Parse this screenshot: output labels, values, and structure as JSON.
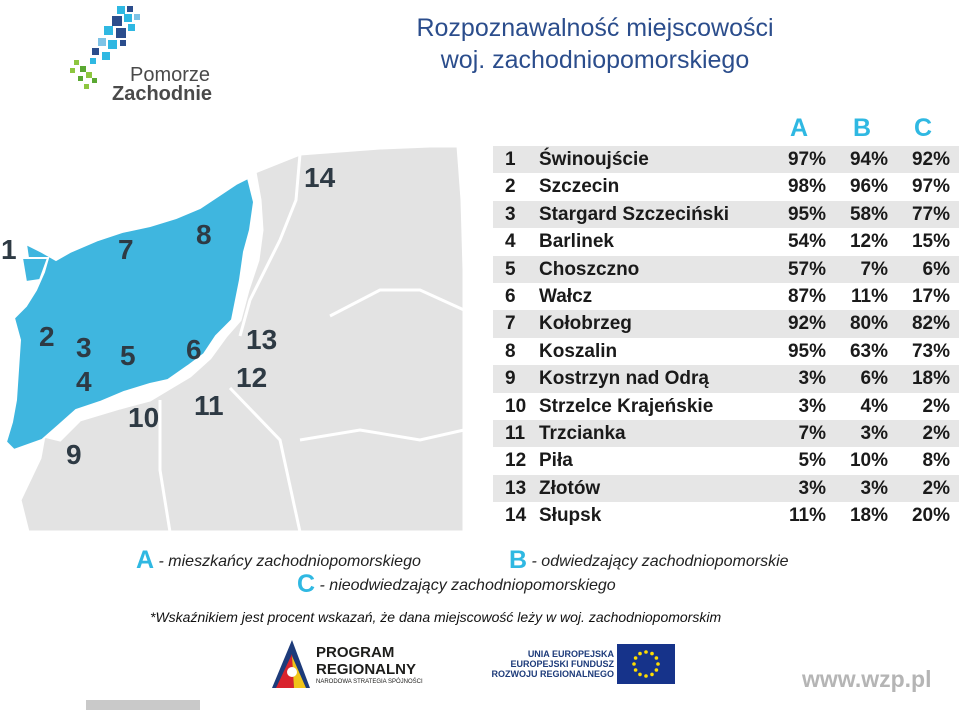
{
  "title": {
    "line1": "Rozpoznawalność miejscowości",
    "line2": "woj. zachodniopomorskiego"
  },
  "logo": {
    "line1": "Pomorze",
    "line2": "Zachodnie"
  },
  "columns": {
    "a": "A",
    "b": "B",
    "c": "C"
  },
  "map_labels": [
    "1",
    "2",
    "3",
    "4",
    "5",
    "6",
    "7",
    "8",
    "9",
    "10",
    "11",
    "12",
    "13",
    "14"
  ],
  "rows": [
    {
      "num": "1",
      "name": "Świnoujście",
      "a": "97%",
      "b": "94%",
      "c": "92%"
    },
    {
      "num": "2",
      "name": "Szczecin",
      "a": "98%",
      "b": "96%",
      "c": "97%"
    },
    {
      "num": "3",
      "name": "Stargard Szczeciński",
      "a": "95%",
      "b": "58%",
      "c": "77%"
    },
    {
      "num": "4",
      "name": "Barlinek",
      "a": "54%",
      "b": "12%",
      "c": "15%"
    },
    {
      "num": "5",
      "name": "Choszczno",
      "a": "57%",
      "b": "7%",
      "c": "6%"
    },
    {
      "num": "6",
      "name": "Wałcz",
      "a": "87%",
      "b": "11%",
      "c": "17%"
    },
    {
      "num": "7",
      "name": "Kołobrzeg",
      "a": "92%",
      "b": "80%",
      "c": "82%"
    },
    {
      "num": "8",
      "name": "Koszalin",
      "a": "95%",
      "b": "63%",
      "c": "73%"
    },
    {
      "num": "9",
      "name": "Kostrzyn nad Odrą",
      "a": "3%",
      "b": "6%",
      "c": "18%"
    },
    {
      "num": "10",
      "name": "Strzelce Krajeńskie",
      "a": "3%",
      "b": "4%",
      "c": "2%"
    },
    {
      "num": "11",
      "name": "Trzcianka",
      "a": "7%",
      "b": "3%",
      "c": "2%"
    },
    {
      "num": "12",
      "name": "Piła",
      "a": "5%",
      "b": "10%",
      "c": "8%"
    },
    {
      "num": "13",
      "name": "Złotów",
      "a": "3%",
      "b": "3%",
      "c": "2%"
    },
    {
      "num": "14",
      "name": "Słupsk",
      "a": "11%",
      "b": "18%",
      "c": "20%"
    }
  ],
  "legend": {
    "a_letter": "A",
    "a_text": "- mieszkańcy zachodniopomorskiego",
    "b_letter": "B",
    "b_text": "- odwiedzający zachodniopomorskie",
    "c_letter": "C",
    "c_text": "- nieodwiedzający zachodniopomorskiego"
  },
  "footnote": "*Wskaźnikiem jest procent wskazań, że dana miejscowość leży w woj. zachodniopomorskim",
  "program": {
    "line1": "PROGRAM",
    "line2": "REGIONALNY",
    "line3": "NARODOWA STRATEGIA SPÓJNOŚCI"
  },
  "eu": {
    "line1": "UNIA EUROPEJSKA",
    "line2": "EUROPEJSKI FUNDUSZ",
    "line3": "ROZWOJU REGIONALNEGO"
  },
  "website": "www.wzp.pl",
  "colors": {
    "title": "#2b4d8c",
    "accent": "#2fb8e2",
    "map_region": "#3fb6df",
    "map_other": "#e3e3e3",
    "row_alt": "#e6e6e6"
  }
}
